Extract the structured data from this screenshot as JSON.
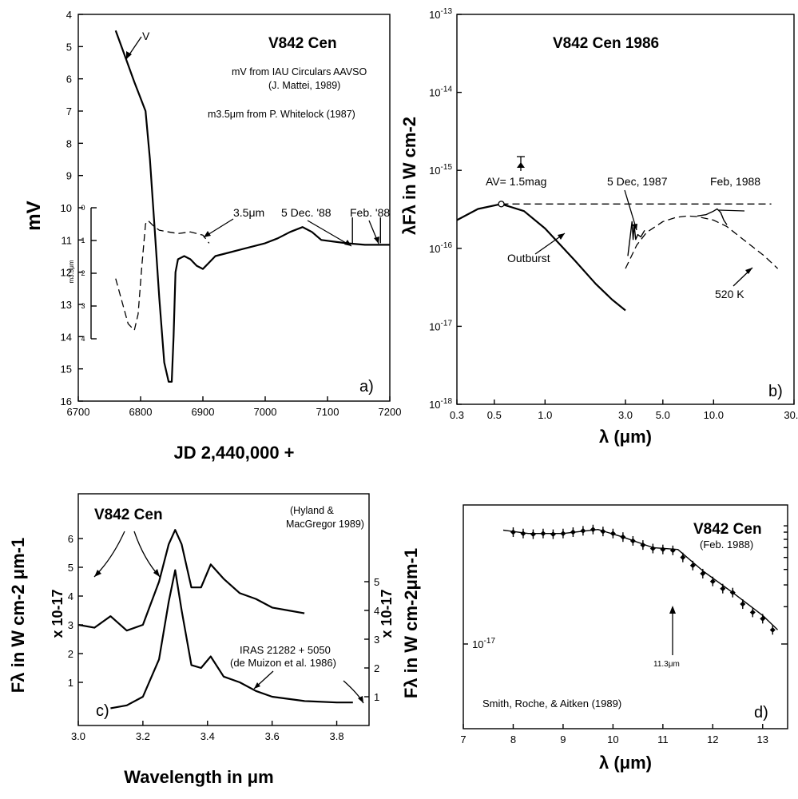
{
  "chart_data": [
    {
      "panel": "a)",
      "type": "line",
      "title": "V842 Cen",
      "notes": [
        "mV from IAU Circulars AAVSO",
        "(J. Mattei, 1989)",
        "m3.5μm from P. Whitelock (1987)"
      ],
      "xlabel": "JD 2,440,000 +",
      "ylabel": "mV",
      "xlim": [
        6700,
        7200
      ],
      "ylim": [
        16,
        4
      ],
      "x_ticks": [
        "6700",
        "6800",
        "6900",
        "7000",
        "7100",
        "7200"
      ],
      "y_ticks": [
        "4",
        "5",
        "6",
        "7",
        "8",
        "9",
        "10",
        "11",
        "12",
        "13",
        "14",
        "15",
        "16"
      ],
      "inset_axis": {
        "label": "m3.5μm",
        "ticks": [
          "0",
          "1",
          "2",
          "3",
          "4"
        ]
      },
      "annotations": [
        "V",
        "3.5μm",
        "5 Dec. '88",
        "Feb. '88"
      ],
      "series": [
        {
          "name": "V",
          "style": "solid",
          "x": [
            6760,
            6775,
            6790,
            6800,
            6808,
            6815,
            6822,
            6830,
            6838,
            6845,
            6850,
            6853,
            6856,
            6860,
            6870,
            6880,
            6890,
            6900,
            6910,
            6920,
            6940,
            6960,
            6980,
            7000,
            7020,
            7040,
            7060,
            7075,
            7090,
            7110,
            7130,
            7160,
            7200
          ],
          "y": [
            4.5,
            5.3,
            6.1,
            6.6,
            7.0,
            8.5,
            10.5,
            12.8,
            14.8,
            15.4,
            15.4,
            14.0,
            12.0,
            11.6,
            11.5,
            11.6,
            11.8,
            11.9,
            11.7,
            11.5,
            11.4,
            11.3,
            11.2,
            11.1,
            10.95,
            10.75,
            10.6,
            10.75,
            11.0,
            11.05,
            11.1,
            11.15,
            11.15
          ]
        },
        {
          "name": "3.5μm",
          "style": "dashed",
          "x": [
            6760,
            6770,
            6780,
            6790,
            6796,
            6802,
            6808,
            6812,
            6820,
            6830,
            6845,
            6860,
            6880,
            6900,
            6910
          ],
          "y": [
            12.2,
            12.9,
            13.6,
            13.8,
            13.3,
            11.8,
            10.5,
            10.4,
            10.55,
            10.7,
            10.75,
            10.8,
            10.75,
            10.85,
            11.1
          ]
        }
      ],
      "markers": [
        {
          "label": "5 Dec. '88",
          "x": 7140
        },
        {
          "label": "Feb. '88",
          "x": 7185
        }
      ]
    },
    {
      "panel": "b)",
      "type": "line",
      "title": "V842 Cen 1986",
      "xlabel": "λ (μm)",
      "ylabel": "λFλ in W cm-2",
      "xscale": "log",
      "yscale": "log",
      "xlim": [
        0.3,
        30
      ],
      "ylim": [
        1e-18,
        1e-13
      ],
      "x_ticks": [
        "0.3",
        "0.5",
        "1.0",
        "3.0",
        "5.0",
        "10.0",
        "30.0"
      ],
      "y_ticks": [
        "10-13",
        "10-14",
        "10-15",
        "10-16",
        "10-17",
        "10-18"
      ],
      "annotations": [
        "AV= 1.5mag",
        "5 Dec, 1987",
        "Feb, 1988",
        "Outburst",
        "520 K"
      ],
      "series": [
        {
          "name": "Outburst",
          "style": "solid",
          "x": [
            0.3,
            0.4,
            0.55,
            0.75,
            1.0,
            1.5,
            2.0,
            2.5,
            3.0
          ],
          "y": [
            2.3e-16,
            3.2e-16,
            3.7e-16,
            3e-16,
            1.8e-16,
            7e-17,
            3.5e-17,
            2.2e-17,
            1.6e-17
          ]
        },
        {
          "name": "520 K",
          "style": "dashed",
          "x": [
            3.0,
            3.5,
            4.0,
            5.0,
            6.0,
            7.0,
            8.0,
            10.0,
            12.0,
            15.0,
            20.0,
            24.0
          ],
          "y": [
            5.5e-17,
            1.1e-16,
            1.6e-16,
            2.2e-16,
            2.5e-16,
            2.6e-16,
            2.55e-16,
            2.3e-16,
            1.9e-16,
            1.3e-16,
            8e-17,
            5.5e-17
          ]
        },
        {
          "name": "5 Dec, 1987",
          "style": "solid",
          "x": [
            3.1,
            3.2,
            3.28,
            3.33,
            3.38,
            3.45,
            3.55,
            3.7,
            3.9
          ],
          "y": [
            8e-17,
            1.4e-16,
            2.2e-16,
            1.3e-16,
            2e-16,
            1.3e-16,
            1.5e-16,
            1.4e-16,
            1.7e-16
          ]
        },
        {
          "name": "Feb, 1988",
          "style": "solid",
          "x": [
            8.0,
            9.0,
            10.0,
            10.5,
            11.0,
            11.5,
            12.0
          ],
          "y": [
            2.6e-16,
            2.7e-16,
            3e-16,
            3.2e-16,
            2.9e-16,
            2.3e-16,
            2e-16
          ]
        },
        {
          "name": "reference level",
          "style": "dashed",
          "x": [
            0.55,
            22
          ],
          "y": [
            3.7e-16,
            3.7e-16
          ]
        }
      ]
    },
    {
      "panel": "c)",
      "type": "line",
      "title": "V842 Cen",
      "notes": [
        "(Hyland &",
        "MacGregor 1989)",
        "IRAS 21282 + 5050",
        "(de Muizon et al. 1986)"
      ],
      "xlabel": "Wavelength in μm",
      "ylabel": "Fλ in W cm-2 μm-1",
      "y_scale_label": "x 10-17",
      "xlim": [
        3.0,
        3.9
      ],
      "x_ticks": [
        "3.0",
        "3.2",
        "3.4",
        "3.6",
        "3.8"
      ],
      "y_ticks_left": [
        "1",
        "2",
        "3",
        "4",
        "5",
        "6"
      ],
      "y_ticks_right": [
        "1",
        "2",
        "3",
        "4",
        "5"
      ],
      "series": [
        {
          "name": "V842 Cen",
          "style": "solid",
          "x": [
            3.0,
            3.05,
            3.1,
            3.15,
            3.2,
            3.25,
            3.28,
            3.3,
            3.32,
            3.35,
            3.38,
            3.41,
            3.45,
            3.5,
            3.55,
            3.6,
            3.65,
            3.7
          ],
          "y": [
            3.0,
            2.9,
            3.3,
            2.8,
            3.0,
            4.5,
            5.8,
            6.3,
            5.8,
            4.3,
            4.3,
            5.1,
            4.6,
            4.1,
            3.9,
            3.6,
            3.5,
            3.4
          ]
        },
        {
          "name": "IRAS 21282 + 5050",
          "style": "solid",
          "x": [
            3.1,
            3.15,
            3.2,
            3.25,
            3.28,
            3.3,
            3.32,
            3.35,
            3.38,
            3.41,
            3.45,
            3.5,
            3.55,
            3.6,
            3.7,
            3.8,
            3.85
          ],
          "y": [
            0.1,
            0.2,
            0.5,
            1.8,
            3.8,
            4.9,
            3.5,
            1.6,
            1.5,
            1.9,
            1.2,
            1.0,
            0.7,
            0.5,
            0.35,
            0.3,
            0.3
          ]
        }
      ]
    },
    {
      "panel": "d)",
      "type": "scatter",
      "title": "V842 Cen",
      "subtitle": "(Feb. 1988)",
      "notes": [
        "11.3μm",
        "Smith, Roche, & Aitken (1989)"
      ],
      "xlabel": "λ (μm)",
      "ylabel": "Fλ in W cm-2μm-1",
      "yscale": "log",
      "xlim": [
        7,
        13.5
      ],
      "x_ticks": [
        "7",
        "8",
        "9",
        "10",
        "11",
        "12",
        "13"
      ],
      "y_ticks": [
        "10-17"
      ],
      "series": [
        {
          "name": "data",
          "style": "points",
          "x": [
            8.0,
            8.2,
            8.4,
            8.6,
            8.8,
            9.0,
            9.2,
            9.4,
            9.6,
            9.8,
            10.0,
            10.2,
            10.4,
            10.6,
            10.8,
            11.0,
            11.2,
            11.4,
            11.6,
            11.8,
            12.0,
            12.2,
            12.4,
            12.6,
            12.8,
            13.0,
            13.2
          ],
          "y": [
            8.0,
            7.8,
            7.7,
            7.8,
            7.7,
            7.8,
            8.0,
            8.2,
            8.4,
            8.1,
            7.8,
            7.3,
            6.8,
            6.3,
            5.9,
            5.8,
            5.7,
            5.0,
            4.3,
            3.7,
            3.2,
            2.8,
            2.6,
            2.1,
            1.8,
            1.6,
            1.3
          ]
        },
        {
          "name": "fit",
          "style": "solid",
          "x": [
            7.8,
            8.3,
            9.0,
            9.7,
            10.2,
            10.8,
            11.3,
            11.8,
            12.4,
            13.0,
            13.3
          ],
          "y": [
            8.3,
            7.8,
            7.8,
            8.4,
            7.3,
            6.0,
            5.8,
            3.9,
            2.6,
            1.7,
            1.3
          ]
        }
      ]
    }
  ]
}
